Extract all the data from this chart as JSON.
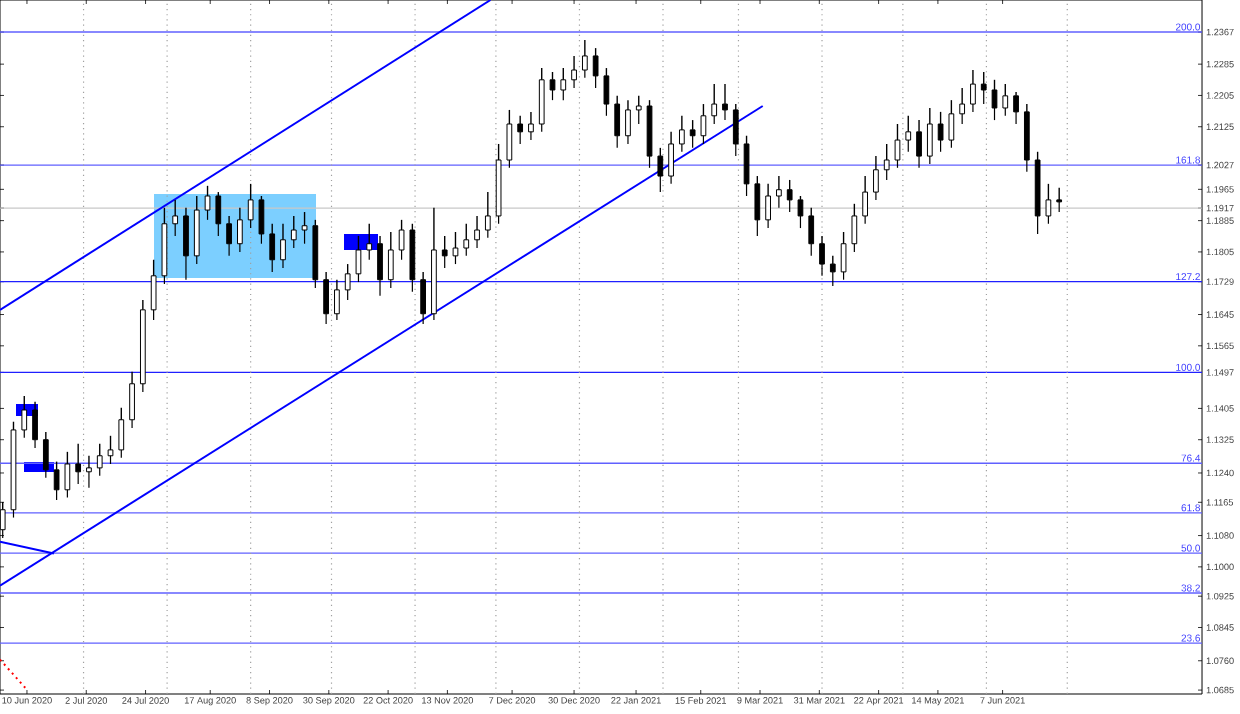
{
  "chart_data": {
    "type": "candlestick",
    "x": [
      "2020-06-01",
      "2020-06-05",
      "2020-06-09",
      "2020-06-13",
      "2020-06-17",
      "2020-06-21",
      "2020-06-25",
      "2020-06-29",
      "2020-07-03",
      "2020-07-07",
      "2020-07-11",
      "2020-07-15",
      "2020-07-19",
      "2020-07-23",
      "2020-07-27",
      "2020-07-31",
      "2020-08-04",
      "2020-08-08",
      "2020-08-12",
      "2020-08-16",
      "2020-08-20",
      "2020-08-24",
      "2020-08-28",
      "2020-09-01",
      "2020-09-05",
      "2020-09-09",
      "2020-09-13",
      "2020-09-17",
      "2020-09-21",
      "2020-09-25",
      "2020-09-29",
      "2020-10-03",
      "2020-10-07",
      "2020-10-11",
      "2020-10-15",
      "2020-10-19",
      "2020-10-23",
      "2020-10-27",
      "2020-10-31",
      "2020-11-04",
      "2020-11-08",
      "2020-11-12",
      "2020-11-16",
      "2020-11-20",
      "2020-11-24",
      "2020-11-28",
      "2020-12-02",
      "2020-12-06",
      "2020-12-10",
      "2020-12-14",
      "2020-12-18",
      "2020-12-22",
      "2020-12-26",
      "2020-12-30",
      "2021-01-03",
      "2021-01-07",
      "2021-01-11",
      "2021-01-15",
      "2021-01-19",
      "2021-01-23",
      "2021-01-27",
      "2021-01-31",
      "2021-02-04",
      "2021-02-08",
      "2021-02-12",
      "2021-02-16",
      "2021-02-20",
      "2021-02-24",
      "2021-02-28",
      "2021-03-04",
      "2021-03-08",
      "2021-03-12",
      "2021-03-16",
      "2021-03-20",
      "2021-03-24",
      "2021-03-28",
      "2021-04-01",
      "2021-04-05",
      "2021-04-09",
      "2021-04-13",
      "2021-04-17",
      "2021-04-21",
      "2021-04-25",
      "2021-04-29",
      "2021-05-03",
      "2021-05-07",
      "2021-05-11",
      "2021-05-15",
      "2021-05-19",
      "2021-05-23",
      "2021-05-27",
      "2021-05-31",
      "2021-06-04",
      "2021-06-08",
      "2021-06-12",
      "2021-06-16",
      "2021-06-20",
      "2021-06-24",
      "2021-06-28"
    ],
    "ohlc": [
      [
        1.1095,
        1.1166,
        1.1074,
        1.1146
      ],
      [
        1.1146,
        1.1371,
        1.1126,
        1.135
      ],
      [
        1.135,
        1.1437,
        1.133,
        1.1401
      ],
      [
        1.1401,
        1.1422,
        1.1304,
        1.1325
      ],
      [
        1.1325,
        1.1345,
        1.1228,
        1.1248
      ],
      [
        1.1248,
        1.1269,
        1.1171,
        1.1197
      ],
      [
        1.1197,
        1.1294,
        1.1177,
        1.1263
      ],
      [
        1.1263,
        1.1315,
        1.1212,
        1.1243
      ],
      [
        1.1243,
        1.1284,
        1.1202,
        1.1253
      ],
      [
        1.1253,
        1.1315,
        1.1233,
        1.1284
      ],
      [
        1.1284,
        1.1335,
        1.1263,
        1.1299
      ],
      [
        1.1299,
        1.1407,
        1.1279,
        1.1376
      ],
      [
        1.1376,
        1.1499,
        1.1355,
        1.1468
      ],
      [
        1.1468,
        1.1682,
        1.1447,
        1.1657
      ],
      [
        1.1657,
        1.1785,
        1.1631,
        1.1744
      ],
      [
        1.1744,
        1.1918,
        1.1723,
        1.1877
      ],
      [
        1.1877,
        1.1938,
        1.1846,
        1.1897
      ],
      [
        1.1897,
        1.1918,
        1.1734,
        1.1795
      ],
      [
        1.1795,
        1.1948,
        1.1774,
        1.1912
      ],
      [
        1.1912,
        1.1974,
        1.1887,
        1.1948
      ],
      [
        1.1948,
        1.1958,
        1.1846,
        1.1877
      ],
      [
        1.1877,
        1.1897,
        1.1795,
        1.1826
      ],
      [
        1.1826,
        1.1918,
        1.1805,
        1.1887
      ],
      [
        1.1887,
        1.1979,
        1.1866,
        1.1938
      ],
      [
        1.1938,
        1.1948,
        1.1826,
        1.1851
      ],
      [
        1.1851,
        1.1877,
        1.1754,
        1.1785
      ],
      [
        1.1785,
        1.1877,
        1.1764,
        1.1836
      ],
      [
        1.1836,
        1.1897,
        1.1815,
        1.1861
      ],
      [
        1.1861,
        1.1907,
        1.1826,
        1.1872
      ],
      [
        1.1872,
        1.1887,
        1.1713,
        1.1734
      ],
      [
        1.1734,
        1.1754,
        1.1621,
        1.1647
      ],
      [
        1.1647,
        1.1734,
        1.1631,
        1.1708
      ],
      [
        1.1708,
        1.1774,
        1.1682,
        1.1749
      ],
      [
        1.1749,
        1.1846,
        1.1728,
        1.181
      ],
      [
        1.181,
        1.1877,
        1.1785,
        1.1826
      ],
      [
        1.1826,
        1.1846,
        1.1693,
        1.1734
      ],
      [
        1.1734,
        1.1856,
        1.1713,
        1.181
      ],
      [
        1.181,
        1.1887,
        1.1785,
        1.1861
      ],
      [
        1.1861,
        1.1877,
        1.1703,
        1.1734
      ],
      [
        1.1734,
        1.1754,
        1.1621,
        1.1647
      ],
      [
        1.1647,
        1.1918,
        1.1631,
        1.181
      ],
      [
        1.181,
        1.1846,
        1.1764,
        1.1795
      ],
      [
        1.1795,
        1.1856,
        1.1774,
        1.1815
      ],
      [
        1.1815,
        1.1877,
        1.1795,
        1.1836
      ],
      [
        1.1836,
        1.1897,
        1.1815,
        1.1861
      ],
      [
        1.1861,
        1.1958,
        1.1841,
        1.1897
      ],
      [
        1.1897,
        1.2081,
        1.1877,
        1.204
      ],
      [
        1.204,
        1.2168,
        1.202,
        1.2132
      ],
      [
        1.2132,
        1.2153,
        1.2081,
        1.2112
      ],
      [
        1.2112,
        1.2163,
        1.2091,
        1.2132
      ],
      [
        1.2132,
        1.2275,
        1.2112,
        1.2245
      ],
      [
        1.2245,
        1.2265,
        1.2193,
        1.2219
      ],
      [
        1.2219,
        1.2275,
        1.2193,
        1.2245
      ],
      [
        1.2245,
        1.2306,
        1.2224,
        1.227
      ],
      [
        1.227,
        1.2347,
        1.225,
        1.2306
      ],
      [
        1.2306,
        1.2326,
        1.2224,
        1.2255
      ],
      [
        1.2255,
        1.2275,
        1.2153,
        1.2183
      ],
      [
        1.2183,
        1.2204,
        1.2071,
        1.2102
      ],
      [
        1.2102,
        1.2193,
        1.2081,
        1.2168
      ],
      [
        1.2168,
        1.2204,
        1.2132,
        1.2178
      ],
      [
        1.2178,
        1.2193,
        1.202,
        1.205
      ],
      [
        1.205,
        1.2071,
        1.1958,
        1.1999
      ],
      [
        1.1999,
        1.2112,
        1.1979,
        1.2081
      ],
      [
        1.2081,
        1.2153,
        1.2061,
        1.2117
      ],
      [
        1.2117,
        1.2142,
        1.2071,
        1.2102
      ],
      [
        1.2102,
        1.2183,
        1.2081,
        1.2153
      ],
      [
        1.2153,
        1.2234,
        1.2132,
        1.2183
      ],
      [
        1.2183,
        1.2234,
        1.2142,
        1.2168
      ],
      [
        1.2168,
        1.2183,
        1.205,
        1.2081
      ],
      [
        1.2081,
        1.2102,
        1.1948,
        1.1979
      ],
      [
        1.1979,
        1.1999,
        1.1846,
        1.1887
      ],
      [
        1.1887,
        1.1979,
        1.1866,
        1.1948
      ],
      [
        1.1948,
        1.1999,
        1.1918,
        1.1964
      ],
      [
        1.1964,
        1.1989,
        1.1907,
        1.1938
      ],
      [
        1.1938,
        1.1948,
        1.1866,
        1.1897
      ],
      [
        1.1897,
        1.1918,
        1.1795,
        1.1826
      ],
      [
        1.1826,
        1.1846,
        1.1744,
        1.1774
      ],
      [
        1.1774,
        1.1795,
        1.1718,
        1.1754
      ],
      [
        1.1754,
        1.1856,
        1.1734,
        1.1826
      ],
      [
        1.1826,
        1.1928,
        1.1805,
        1.1897
      ],
      [
        1.1897,
        1.1999,
        1.1877,
        1.1958
      ],
      [
        1.1958,
        1.205,
        1.1938,
        1.2015
      ],
      [
        1.2015,
        1.2081,
        1.1989,
        1.204
      ],
      [
        1.204,
        1.2132,
        1.202,
        1.2091
      ],
      [
        1.2091,
        1.2153,
        1.2061,
        1.2112
      ],
      [
        1.2112,
        1.2142,
        1.202,
        1.205
      ],
      [
        1.205,
        1.2173,
        1.203,
        1.2132
      ],
      [
        1.2132,
        1.2163,
        1.2061,
        1.2091
      ],
      [
        1.2091,
        1.2193,
        1.2071,
        1.2158
      ],
      [
        1.2158,
        1.2224,
        1.2132,
        1.2183
      ],
      [
        1.2183,
        1.227,
        1.2163,
        1.2234
      ],
      [
        1.2234,
        1.2265,
        1.2183,
        1.2219
      ],
      [
        1.2219,
        1.2245,
        1.2142,
        1.2173
      ],
      [
        1.2173,
        1.2234,
        1.2153,
        1.2204
      ],
      [
        1.2204,
        1.2214,
        1.2132,
        1.2163
      ],
      [
        1.2163,
        1.2183,
        1.201,
        1.204
      ],
      [
        1.204,
        1.2061,
        1.1851,
        1.1897
      ],
      [
        1.1897,
        1.1979,
        1.1877,
        1.1938
      ],
      [
        1.1938,
        1.1969,
        1.1907,
        1.1933
      ]
    ],
    "series": [
      {
        "type": "line",
        "color": "#0000ff",
        "line_style": "solid",
        "x": [
          "2020-05-31",
          "2020-11-29"
        ],
        "values": [
          1.1657,
          1.2449
        ]
      },
      {
        "type": "line",
        "color": "#0000ff",
        "line_style": "solid",
        "x": [
          "2020-05-31",
          "2021-03-10"
        ],
        "values": [
          1.0952,
          1.2178
        ]
      },
      {
        "type": "line",
        "color": "#0000ff",
        "line_style": "solid",
        "x": [
          "2020-05-31",
          "2020-06-20"
        ],
        "values": [
          1.1064,
          1.1034
        ]
      },
      {
        "type": "line",
        "color": "#ff0000",
        "line_style": "dotted",
        "x": [
          "2020-05-31",
          "2020-06-10"
        ],
        "values": [
          1.0763,
          1.0686
        ]
      }
    ],
    "annotations": [
      {
        "text": "200.0",
        "x": "2021-08-20",
        "y": 1.2367
      },
      {
        "text": "161.8",
        "x": "2021-08-20",
        "y": 1.2027
      },
      {
        "text": "127.2",
        "x": "2021-08-20",
        "y": 1.1729
      },
      {
        "text": "100.0",
        "x": "2021-08-20",
        "y": 1.1497
      },
      {
        "text": "76.4",
        "x": "2021-08-20",
        "y": 1.1265
      },
      {
        "text": "61.8",
        "x": "2021-08-20",
        "y": 1.1138
      },
      {
        "text": "50.0",
        "x": "2021-08-20",
        "y": 1.1035
      },
      {
        "text": "38.2",
        "x": "2021-08-20",
        "y": 1.0933
      },
      {
        "text": "23.6",
        "x": "2021-08-20",
        "y": 1.0805
      }
    ],
    "xlim": [
      "2020-05-31",
      "2021-08-20"
    ],
    "ylim": [
      1.0675,
      1.2449
    ],
    "xticks": [
      {
        "value": "2020-06-10",
        "label": "10 Jun 2020"
      },
      {
        "value": "2020-07-02",
        "label": "2 Jul 2020"
      },
      {
        "value": "2020-07-24",
        "label": "24 Jul 2020"
      },
      {
        "value": "2020-08-17",
        "label": "17 Aug 2020"
      },
      {
        "value": "2020-09-08",
        "label": "8 Sep 2020"
      },
      {
        "value": "2020-09-30",
        "label": "30 Sep 2020"
      },
      {
        "value": "2020-10-22",
        "label": "22 Oct 2020"
      },
      {
        "value": "2020-11-13",
        "label": "13 Nov 2020"
      },
      {
        "value": "2020-12-07",
        "label": "7 Dec 2020"
      },
      {
        "value": "2020-12-30",
        "label": "30 Dec 2020"
      },
      {
        "value": "2021-01-22",
        "label": "22 Jan 2021"
      },
      {
        "value": "2021-02-15",
        "label": "15 Feb 2021"
      },
      {
        "value": "2021-03-09",
        "label": "9 Mar 2021"
      },
      {
        "value": "2021-03-31",
        "label": "31 Mar 2021"
      },
      {
        "value": "2021-04-22",
        "label": "22 Apr 2021"
      },
      {
        "value": "2021-05-14",
        "label": "14 May 2021"
      },
      {
        "value": "2021-06-07",
        "label": "7 Jun 2021"
      }
    ],
    "yticks": [
      1.2367,
      1.2285,
      1.2205,
      1.2125,
      1.2027,
      1.1965,
      1.1917,
      1.1885,
      1.1805,
      1.1729,
      1.1645,
      1.1565,
      1.1497,
      1.1405,
      1.1325,
      {
        "value": 1.124,
        "label": "1.1240"
      },
      1.1165,
      {
        "value": 1.108,
        "label": "1.1080"
      },
      {
        "value": 1.1,
        "label": "1.1000"
      },
      1.0925,
      1.0845,
      {
        "value": 1.076,
        "label": "1.0760"
      },
      1.0685
    ],
    "ref_lines": [
      {
        "axis": "y",
        "value": 1.2367,
        "color": "#6060ff"
      },
      {
        "axis": "y",
        "value": 1.2027,
        "color": "#6060ff"
      },
      {
        "axis": "y",
        "value": 1.1917,
        "color": "#c8c8c8"
      },
      {
        "axis": "y",
        "value": 1.1729,
        "color": "#2020ff"
      },
      {
        "axis": "y",
        "value": 1.1497,
        "color": "#2020ff"
      },
      {
        "axis": "y",
        "value": 1.1265,
        "color": "#6060ff"
      },
      {
        "axis": "y",
        "value": 1.1138,
        "color": "#6060ff"
      },
      {
        "axis": "y",
        "value": 1.1035,
        "color": "#6060ff"
      },
      {
        "axis": "y",
        "value": 1.0933,
        "color": "#6060ff"
      },
      {
        "axis": "y",
        "value": 1.0805,
        "color": "#6060ff"
      },
      {
        "axis": "x",
        "value": "2020-07-01",
        "color": "#a0a0a0",
        "line_style": "dotted"
      },
      {
        "axis": "x",
        "value": "2020-08-01",
        "color": "#a0a0a0",
        "line_style": "dotted"
      },
      {
        "axis": "x",
        "value": "2020-09-01",
        "color": "#a0a0a0",
        "line_style": "dotted"
      },
      {
        "axis": "x",
        "value": "2020-10-01",
        "color": "#a0a0a0",
        "line_style": "dotted"
      },
      {
        "axis": "x",
        "value": "2020-11-01",
        "color": "#a0a0a0",
        "line_style": "dotted"
      },
      {
        "axis": "x",
        "value": "2020-12-01",
        "color": "#a0a0a0",
        "line_style": "dotted"
      },
      {
        "axis": "x",
        "value": "2021-01-01",
        "color": "#a0a0a0",
        "line_style": "dotted"
      },
      {
        "axis": "x",
        "value": "2021-02-01",
        "color": "#a0a0a0",
        "line_style": "dotted"
      },
      {
        "axis": "x",
        "value": "2021-03-01",
        "color": "#a0a0a0",
        "line_style": "dotted"
      },
      {
        "axis": "x",
        "value": "2021-04-01",
        "color": "#a0a0a0",
        "line_style": "dotted"
      },
      {
        "axis": "x",
        "value": "2021-05-01",
        "color": "#a0a0a0",
        "line_style": "dotted"
      },
      {
        "axis": "x",
        "value": "2021-06-01",
        "color": "#a0a0a0",
        "line_style": "dotted"
      },
      {
        "axis": "x",
        "value": "2021-07-01",
        "color": "#a0a0a0",
        "line_style": "dotted"
      }
    ]
  }
}
